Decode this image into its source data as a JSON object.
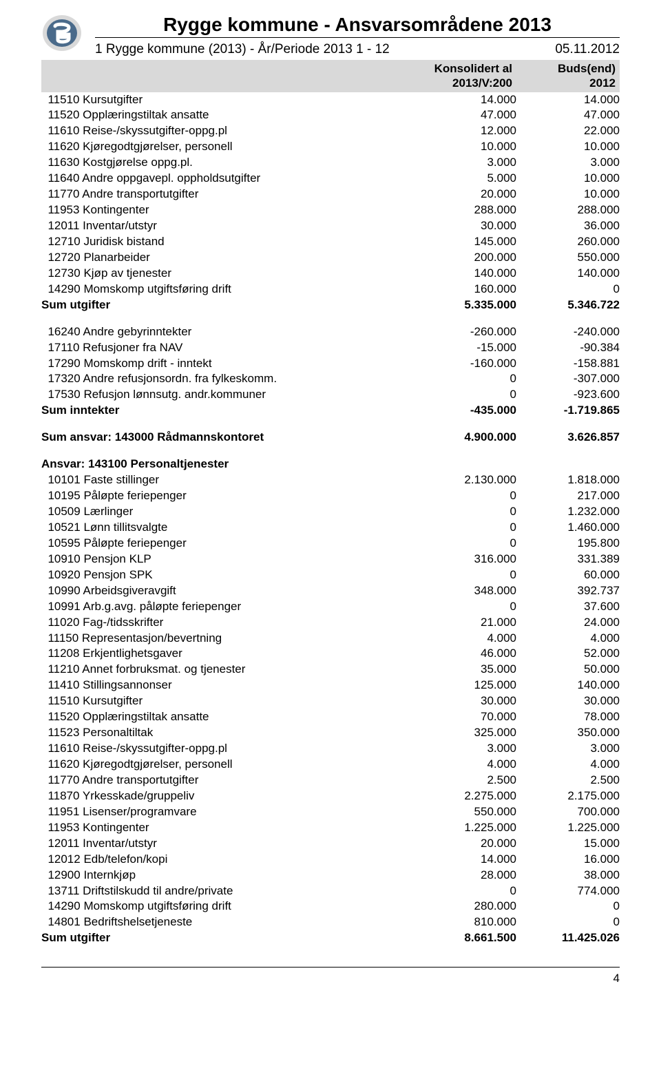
{
  "header": {
    "title": "Rygge kommune - Ansvarsområdene 2013",
    "subtitle_left": "1 Rygge kommune (2013) - År/Periode 2013 1 - 12",
    "subtitle_right": "05.11.2012",
    "col1_line1": "Konsolidert al",
    "col1_line2": "2013/V:200",
    "col2_line1": "Buds(end)",
    "col2_line2": "2012"
  },
  "logo": {
    "bg": "#d9d9d9",
    "inner": "#4a6a8a",
    "letter": "#ffffff"
  },
  "block1": {
    "rows": [
      {
        "label": "11510 Kursutgifter",
        "v1": "14.000",
        "v2": "14.000"
      },
      {
        "label": "11520 Opplæringstiltak ansatte",
        "v1": "47.000",
        "v2": "47.000"
      },
      {
        "label": "11610 Reise-/skyssutgifter-oppg.pl",
        "v1": "12.000",
        "v2": "22.000"
      },
      {
        "label": "11620 Kjøregodtgjørelser, personell",
        "v1": "10.000",
        "v2": "10.000"
      },
      {
        "label": "11630 Kostgjørelse oppg.pl.",
        "v1": "3.000",
        "v2": "3.000"
      },
      {
        "label": "11640 Andre oppgavepl. oppholdsutgifter",
        "v1": "5.000",
        "v2": "10.000"
      },
      {
        "label": "11770 Andre transportutgifter",
        "v1": "20.000",
        "v2": "10.000"
      },
      {
        "label": "11953 Kontingenter",
        "v1": "288.000",
        "v2": "288.000"
      },
      {
        "label": "12011 Inventar/utstyr",
        "v1": "30.000",
        "v2": "36.000"
      },
      {
        "label": "12710 Juridisk bistand",
        "v1": "145.000",
        "v2": "260.000"
      },
      {
        "label": "12720 Planarbeider",
        "v1": "200.000",
        "v2": "550.000"
      },
      {
        "label": "12730 Kjøp av tjenester",
        "v1": "140.000",
        "v2": "140.000"
      },
      {
        "label": "14290 Momskomp utgiftsføring drift",
        "v1": "160.000",
        "v2": "0"
      }
    ],
    "sum": {
      "label": "Sum utgifter",
      "v1": "5.335.000",
      "v2": "5.346.722"
    }
  },
  "block2": {
    "rows": [
      {
        "label": "16240 Andre gebyrinntekter",
        "v1": "-260.000",
        "v2": "-240.000"
      },
      {
        "label": "17110 Refusjoner fra NAV",
        "v1": "-15.000",
        "v2": "-90.384"
      },
      {
        "label": "17290 Momskomp drift - inntekt",
        "v1": "-160.000",
        "v2": "-158.881"
      },
      {
        "label": "17320 Andre refusjonsordn. fra fylkeskomm.",
        "v1": "0",
        "v2": "-307.000"
      },
      {
        "label": "17530 Refusjon lønnsutg. andr.kommuner",
        "v1": "0",
        "v2": "-923.600"
      }
    ],
    "sum": {
      "label": "Sum inntekter",
      "v1": "-435.000",
      "v2": "-1.719.865"
    }
  },
  "ansvar_sum": {
    "label": "Sum ansvar: 143000 Rådmannskontoret",
    "v1": "4.900.000",
    "v2": "3.626.857"
  },
  "block3": {
    "heading": "Ansvar: 143100 Personaltjenester",
    "rows": [
      {
        "label": "10101 Faste stillinger",
        "v1": "2.130.000",
        "v2": "1.818.000"
      },
      {
        "label": "10195 Påløpte feriepenger",
        "v1": "0",
        "v2": "217.000"
      },
      {
        "label": "10509 Lærlinger",
        "v1": "0",
        "v2": "1.232.000"
      },
      {
        "label": "10521 Lønn tillitsvalgte",
        "v1": "0",
        "v2": "1.460.000"
      },
      {
        "label": "10595 Påløpte feriepenger",
        "v1": "0",
        "v2": "195.800"
      },
      {
        "label": "10910 Pensjon KLP",
        "v1": "316.000",
        "v2": "331.389"
      },
      {
        "label": "10920 Pensjon SPK",
        "v1": "0",
        "v2": "60.000"
      },
      {
        "label": "10990 Arbeidsgiveravgift",
        "v1": "348.000",
        "v2": "392.737"
      },
      {
        "label": "10991 Arb.g.avg. påløpte feriepenger",
        "v1": "0",
        "v2": "37.600"
      },
      {
        "label": "11020 Fag-/tidsskrifter",
        "v1": "21.000",
        "v2": "24.000"
      },
      {
        "label": "11150 Representasjon/bevertning",
        "v1": "4.000",
        "v2": "4.000"
      },
      {
        "label": "11208 Erkjentlighetsgaver",
        "v1": "46.000",
        "v2": "52.000"
      },
      {
        "label": "11210 Annet forbruksmat. og tjenester",
        "v1": "35.000",
        "v2": "50.000"
      },
      {
        "label": "11410 Stillingsannonser",
        "v1": "125.000",
        "v2": "140.000"
      },
      {
        "label": "11510 Kursutgifter",
        "v1": "30.000",
        "v2": "30.000"
      },
      {
        "label": "11520 Opplæringstiltak ansatte",
        "v1": "70.000",
        "v2": "78.000"
      },
      {
        "label": "11523 Personaltiltak",
        "v1": "325.000",
        "v2": "350.000"
      },
      {
        "label": "11610 Reise-/skyssutgifter-oppg.pl",
        "v1": "3.000",
        "v2": "3.000"
      },
      {
        "label": "11620 Kjøregodtgjørelser, personell",
        "v1": "4.000",
        "v2": "4.000"
      },
      {
        "label": "11770 Andre transportutgifter",
        "v1": "2.500",
        "v2": "2.500"
      },
      {
        "label": "11870 Yrkesskade/gruppeliv",
        "v1": "2.275.000",
        "v2": "2.175.000"
      },
      {
        "label": "11951 Lisenser/programvare",
        "v1": "550.000",
        "v2": "700.000"
      },
      {
        "label": "11953 Kontingenter",
        "v1": "1.225.000",
        "v2": "1.225.000"
      },
      {
        "label": "12011 Inventar/utstyr",
        "v1": "20.000",
        "v2": "15.000"
      },
      {
        "label": "12012 Edb/telefon/kopi",
        "v1": "14.000",
        "v2": "16.000"
      },
      {
        "label": "12900 Internkjøp",
        "v1": "28.000",
        "v2": "38.000"
      },
      {
        "label": "13711 Driftstilskudd til andre/private",
        "v1": "0",
        "v2": "774.000"
      },
      {
        "label": "14290 Momskomp utgiftsføring drift",
        "v1": "280.000",
        "v2": "0"
      },
      {
        "label": "14801 Bedriftshelsetjeneste",
        "v1": "810.000",
        "v2": "0"
      }
    ],
    "sum": {
      "label": "Sum utgifter",
      "v1": "8.661.500",
      "v2": "11.425.026"
    }
  },
  "page": "4"
}
